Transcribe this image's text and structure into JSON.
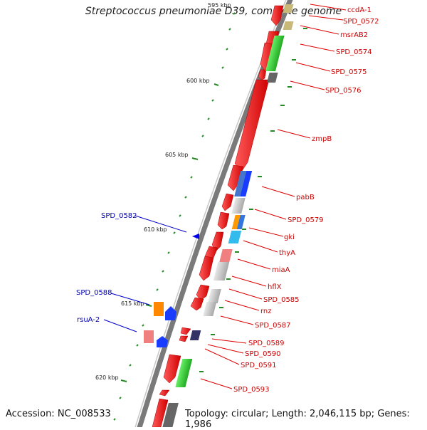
{
  "title": "Streptococcus pneumoniae D39, complete genome",
  "footer": {
    "accession": "Accession: NC_008533",
    "summary": "Topology: circular; Length: 2,046,115 bp; Genes: 1,986"
  },
  "scale_labels": [
    "595 kbp",
    "600 kbp",
    "605 kbp",
    "610 kbp",
    "615 kbp",
    "620 kbp"
  ],
  "colors": {
    "forward_cds": "#ff0000",
    "reverse_cds": "#0000ff",
    "forward_label": "#cc0000",
    "reverse_label": "#0000aa",
    "tick": "#228b22",
    "backbone": "#808080"
  },
  "forward_genes": [
    "ccdA-1",
    "SPD_0572",
    "msrAB2",
    "SPD_0574",
    "SPD_0575",
    "SPD_0576",
    "zmpB",
    "pabB",
    "SPD_0579",
    "gki",
    "thyA",
    "miaA",
    "hflX",
    "SPD_0585",
    "rnz",
    "SPD_0587",
    "SPD_0589",
    "SPD_0590",
    "SPD_0591",
    "SPD_0593"
  ],
  "reverse_genes": [
    "SPD_0582",
    "SPD_0588",
    "rsuA-2"
  ]
}
